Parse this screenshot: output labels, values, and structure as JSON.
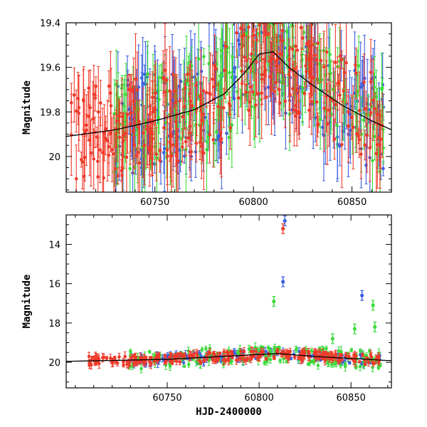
{
  "chart_data": [
    {
      "panel": "top",
      "type": "scatter",
      "xlabel": "",
      "ylabel": "Magnitude",
      "xlim": [
        60705,
        60870
      ],
      "ylim": [
        20.16,
        19.4
      ],
      "y_axis_inverted": true,
      "x_ticks": [
        60750,
        60800,
        60850
      ],
      "y_ticks": [
        19.4,
        19.6,
        19.8,
        20
      ],
      "y_tick_labels": [
        "19.4",
        "19.6",
        "19.8",
        "20"
      ],
      "error_bars": true,
      "grid": false,
      "series": [
        {
          "color": "#3a5fe0",
          "x_range": [
            60730,
            60866
          ],
          "y_range": [
            19.45,
            20.05
          ],
          "count": 220
        },
        {
          "color": "#3ddc3d",
          "x_range": [
            60728,
            60866
          ],
          "y_range": [
            19.45,
            20.05
          ],
          "count": 220
        },
        {
          "color": "#f03a2a",
          "x_range": [
            60707,
            60866
          ],
          "y_range": [
            19.45,
            20.05
          ],
          "count": 320
        }
      ],
      "model_curve": {
        "color": "#000000",
        "x": [
          60705,
          60730,
          60750,
          60770,
          60785,
          60795,
          60803,
          60810,
          60818,
          60830,
          60845,
          60860,
          60870
        ],
        "y": [
          19.91,
          19.88,
          19.84,
          19.79,
          19.72,
          19.63,
          19.54,
          19.53,
          19.6,
          19.68,
          19.77,
          19.84,
          19.88
        ]
      }
    },
    {
      "panel": "bottom",
      "type": "scatter",
      "xlabel": "HJD-2400000",
      "ylabel": "Magnitude",
      "xlim": [
        60695,
        60872
      ],
      "ylim": [
        21.3,
        12.5
      ],
      "y_axis_inverted": true,
      "x_ticks": [
        60750,
        60800,
        60850
      ],
      "y_ticks": [
        14,
        16,
        18,
        20
      ],
      "y_tick_labels": [
        "14",
        "16",
        "18",
        "20"
      ],
      "error_bars": true,
      "grid": false,
      "flares": [
        {
          "color": "#3a5fe0",
          "x": 60814,
          "y": 12.8
        },
        {
          "color": "#f03a2a",
          "x": 60813,
          "y": 13.2
        },
        {
          "color": "#3a5fe0",
          "x": 60813,
          "y": 15.9
        },
        {
          "color": "#3ddc3d",
          "x": 60808,
          "y": 16.9
        },
        {
          "color": "#3a5fe0",
          "x": 60856,
          "y": 16.6
        },
        {
          "color": "#3ddc3d",
          "x": 60862,
          "y": 17.1
        },
        {
          "color": "#3ddc3d",
          "x": 60863,
          "y": 18.2
        },
        {
          "color": "#3ddc3d",
          "x": 60852,
          "y": 18.3
        },
        {
          "color": "#3ddc3d",
          "x": 60840,
          "y": 18.8
        }
      ],
      "series": [
        {
          "color": "#3a5fe0",
          "x_range": [
            60730,
            60866
          ],
          "y_range": [
            19.5,
            20.3
          ],
          "count": 160
        },
        {
          "color": "#3ddc3d",
          "x_range": [
            60728,
            60866
          ],
          "y_range": [
            19.3,
            20.6
          ],
          "count": 170
        },
        {
          "color": "#f03a2a",
          "x_range": [
            60707,
            60866
          ],
          "y_range": [
            19.5,
            20.1
          ],
          "count": 260
        }
      ],
      "model_curve": {
        "color": "#000000",
        "x": [
          60695,
          60750,
          60800,
          60810,
          60830,
          60872
        ],
        "y": [
          19.95,
          19.85,
          19.6,
          19.55,
          19.7,
          19.92
        ]
      }
    }
  ]
}
